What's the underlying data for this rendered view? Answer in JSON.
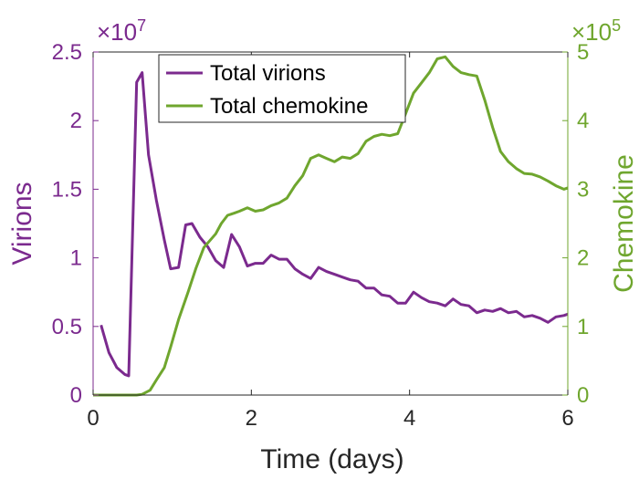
{
  "chart_data": {
    "type": "line",
    "xlabel": "Time (days)",
    "ylabel_left": "Virions",
    "ylabel_right": "Chemokine",
    "xlim": [
      0,
      6
    ],
    "ylim_left": [
      0,
      25000000
    ],
    "ylim_right": [
      0,
      500000
    ],
    "x_ticks": [
      "0",
      "2",
      "4",
      "6"
    ],
    "y_left_ticks": [
      "0",
      "0.5",
      "1",
      "1.5",
      "2",
      "2.5"
    ],
    "y_right_ticks": [
      "0",
      "1",
      "2",
      "3",
      "4",
      "5"
    ],
    "y_left_exponent_mult": "×10",
    "y_left_exponent_power": "7",
    "y_right_exponent_mult": "×10",
    "y_right_exponent_power": "5",
    "grid": false,
    "legend_position": "top-left",
    "colors": {
      "virions": "#7B2A8E",
      "chemokine": "#6FA62E",
      "axis": "#262626"
    },
    "series": [
      {
        "name": "Total virions",
        "axis": "left",
        "x": [
          0.1,
          0.2,
          0.3,
          0.4,
          0.45,
          0.55,
          0.62,
          0.7,
          0.8,
          0.9,
          0.98,
          1.08,
          1.17,
          1.25,
          1.35,
          1.45,
          1.55,
          1.65,
          1.75,
          1.85,
          1.95,
          2.05,
          2.15,
          2.25,
          2.35,
          2.45,
          2.55,
          2.65,
          2.75,
          2.85,
          2.95,
          3.05,
          3.15,
          3.25,
          3.35,
          3.45,
          3.55,
          3.65,
          3.75,
          3.85,
          3.95,
          4.05,
          4.15,
          4.25,
          4.35,
          4.45,
          4.55,
          4.65,
          4.75,
          4.85,
          4.95,
          5.05,
          5.15,
          5.25,
          5.35,
          5.45,
          5.55,
          5.65,
          5.75,
          5.85,
          5.95,
          6.0
        ],
        "values": [
          5100000,
          3100000,
          2000000,
          1500000,
          1400000,
          22800000,
          23500000,
          17500000,
          14200000,
          11300000,
          9200000,
          9300000,
          12400000,
          12500000,
          11500000,
          10800000,
          9800000,
          9300000,
          11700000,
          10800000,
          9400000,
          9600000,
          9600000,
          10200000,
          9900000,
          9900000,
          9200000,
          8800000,
          8500000,
          9300000,
          9000000,
          8800000,
          8600000,
          8400000,
          8300000,
          7800000,
          7800000,
          7300000,
          7200000,
          6700000,
          6700000,
          7500000,
          7100000,
          6800000,
          6700000,
          6500000,
          7000000,
          6600000,
          6500000,
          6000000,
          6200000,
          6100000,
          6300000,
          6000000,
          6100000,
          5700000,
          5800000,
          5600000,
          5300000,
          5700000,
          5800000,
          5900000
        ]
      },
      {
        "name": "Total chemokine",
        "axis": "right",
        "x": [
          0,
          0.2,
          0.35,
          0.45,
          0.55,
          0.62,
          0.72,
          0.8,
          0.9,
          0.98,
          1.08,
          1.2,
          1.3,
          1.4,
          1.55,
          1.62,
          1.7,
          1.78,
          1.85,
          1.95,
          2.05,
          2.15,
          2.25,
          2.35,
          2.45,
          2.55,
          2.65,
          2.75,
          2.85,
          2.95,
          3.05,
          3.15,
          3.25,
          3.35,
          3.45,
          3.55,
          3.65,
          3.75,
          3.85,
          3.95,
          4.05,
          4.15,
          4.25,
          4.35,
          4.45,
          4.55,
          4.65,
          4.75,
          4.85,
          4.95,
          5.05,
          5.15,
          5.25,
          5.35,
          5.45,
          5.55,
          5.65,
          5.75,
          5.85,
          5.95,
          6.0
        ],
        "values": [
          0,
          0,
          0,
          0,
          0,
          1000,
          7000,
          22000,
          40000,
          70000,
          110000,
          150000,
          185000,
          215000,
          235000,
          250000,
          262000,
          265000,
          268000,
          273000,
          268000,
          270000,
          276000,
          280000,
          287000,
          305000,
          320000,
          345000,
          350000,
          345000,
          340000,
          347000,
          345000,
          352000,
          370000,
          377000,
          380000,
          378000,
          381000,
          410000,
          440000,
          455000,
          470000,
          490000,
          493000,
          479000,
          470000,
          467000,
          465000,
          430000,
          390000,
          355000,
          340000,
          330000,
          323000,
          322000,
          318000,
          312000,
          305000,
          300000,
          302000
        ]
      }
    ]
  }
}
